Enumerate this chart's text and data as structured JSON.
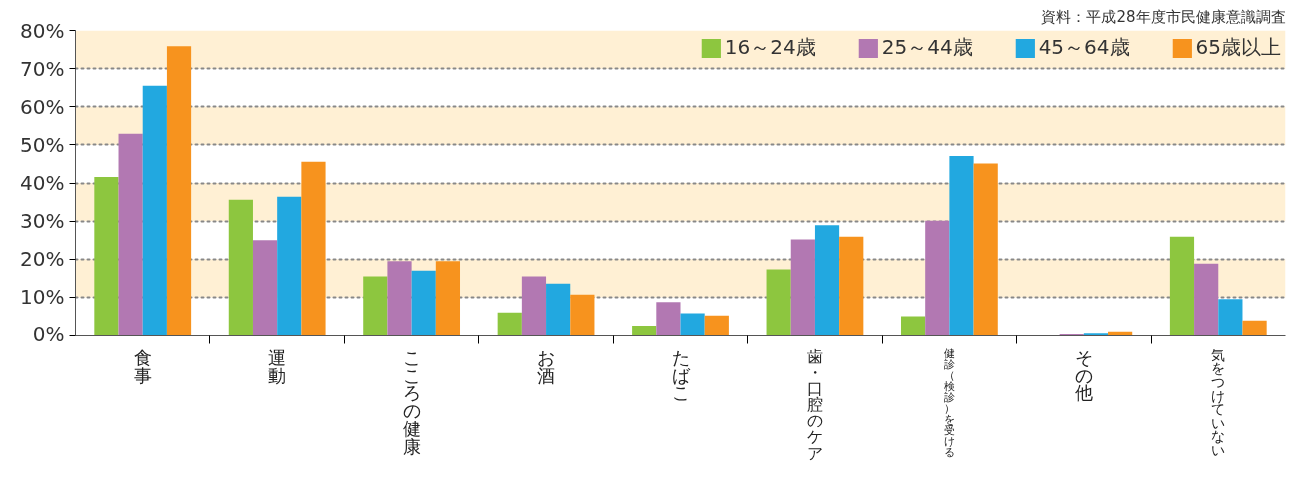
{
  "chart_data": {
    "type": "bar",
    "categories": [
      "食事",
      "運動",
      "こころの健康",
      "お酒",
      "たばこ",
      "歯・口腔のケア",
      "健診（検診）を受ける",
      "その他",
      "気をつけていない"
    ],
    "series": [
      {
        "name": "16～24歳",
        "color": "#8dc63f",
        "values": [
          41.6,
          35.6,
          15.5,
          6.0,
          2.5,
          17.3,
          5.0,
          0,
          25.9
        ]
      },
      {
        "name": "25～44歳",
        "color": "#b278b2",
        "values": [
          52.9,
          25.0,
          19.5,
          15.5,
          8.7,
          25.2,
          30.1,
          0.4,
          18.8
        ]
      },
      {
        "name": "45～64歳",
        "color": "#22a8e0",
        "values": [
          65.5,
          36.4,
          17.0,
          13.6,
          5.8,
          28.9,
          47.1,
          0.6,
          9.5
        ]
      },
      {
        "name": "65歳以上",
        "color": "#f7931e",
        "values": [
          75.9,
          45.6,
          19.5,
          10.7,
          5.2,
          25.9,
          45.1,
          1.0,
          3.9
        ]
      }
    ],
    "ylim": [
      0,
      80
    ],
    "yticks": [
      {
        "value": 0,
        "label": "0%"
      },
      {
        "value": 10,
        "label": "10%"
      },
      {
        "value": 20,
        "label": "20%"
      },
      {
        "value": 30,
        "label": "30%"
      },
      {
        "value": 40,
        "label": "40%"
      },
      {
        "value": 50,
        "label": "50%"
      },
      {
        "value": 60,
        "label": "60%"
      },
      {
        "value": 70,
        "label": "70%"
      },
      {
        "value": 80,
        "label": "80%"
      }
    ],
    "bands": [
      {
        "axis": "y",
        "from": 10,
        "to": 20,
        "color": "#fff0d4"
      },
      {
        "axis": "y",
        "from": 30,
        "to": 40,
        "color": "#fff0d4"
      },
      {
        "axis": "y",
        "from": 50,
        "to": 60,
        "color": "#fff0d4"
      },
      {
        "axis": "y",
        "from": 70,
        "to": 80,
        "color": "#fff0d4"
      }
    ],
    "grid": "y",
    "legend": "top right",
    "annotations": [
      "資料：平成28年度市民健康意識調査"
    ]
  }
}
